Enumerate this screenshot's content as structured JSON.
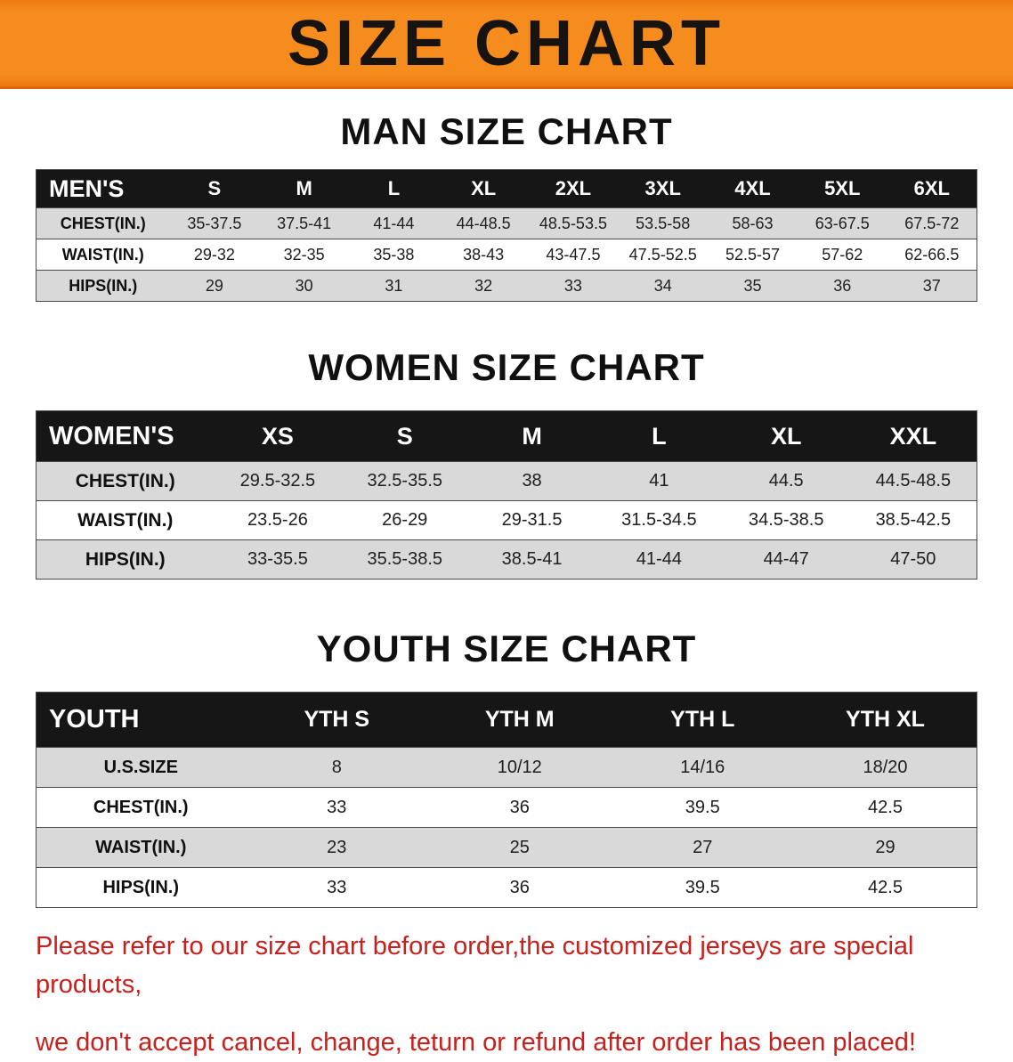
{
  "banner": {
    "title": "SIZE CHART"
  },
  "sections": {
    "men": {
      "heading": "MAN SIZE CHART",
      "table": {
        "header": [
          "MEN'S",
          "S",
          "M",
          "L",
          "XL",
          "2XL",
          "3XL",
          "4XL",
          "5XL",
          "6XL"
        ],
        "rows": [
          [
            "CHEST(IN.)",
            "35-37.5",
            "37.5-41",
            "41-44",
            "44-48.5",
            "48.5-53.5",
            "53.5-58",
            "58-63",
            "63-67.5",
            "67.5-72"
          ],
          [
            "WAIST(IN.)",
            "29-32",
            "32-35",
            "35-38",
            "38-43",
            "43-47.5",
            "47.5-52.5",
            "52.5-57",
            "57-62",
            "62-66.5"
          ],
          [
            "HIPS(IN.)",
            "29",
            "30",
            "31",
            "32",
            "33",
            "34",
            "35",
            "36",
            "37"
          ]
        ]
      }
    },
    "women": {
      "heading": "WOMEN SIZE CHART",
      "table": {
        "header": [
          "WOMEN'S",
          "XS",
          "S",
          "M",
          "L",
          "XL",
          "XXL"
        ],
        "rows": [
          [
            "CHEST(IN.)",
            "29.5-32.5",
            "32.5-35.5",
            "38",
            "41",
            "44.5",
            "44.5-48.5"
          ],
          [
            "WAIST(IN.)",
            "23.5-26",
            "26-29",
            "29-31.5",
            "31.5-34.5",
            "34.5-38.5",
            "38.5-42.5"
          ],
          [
            "HIPS(IN.)",
            "33-35.5",
            "35.5-38.5",
            "38.5-41",
            "41-44",
            "44-47",
            "47-50"
          ]
        ]
      }
    },
    "youth": {
      "heading": "YOUTH SIZE CHART",
      "table": {
        "header": [
          "YOUTH",
          "YTH S",
          "YTH M",
          "YTH L",
          "YTH XL"
        ],
        "rows": [
          [
            "U.S.SIZE",
            "8",
            "10/12",
            "14/16",
            "18/20"
          ],
          [
            "CHEST(IN.)",
            "33",
            "36",
            "39.5",
            "42.5"
          ],
          [
            "WAIST(IN.)",
            "23",
            "25",
            "27",
            "29"
          ],
          [
            "HIPS(IN.)",
            "33",
            "36",
            "39.5",
            "42.5"
          ]
        ]
      }
    }
  },
  "notice": {
    "line1": "Please refer to our size chart before order,the customized jerseys are special products,",
    "line2": "we don't accept cancel, change, teturn or refund after order has been placed!"
  },
  "colors": {
    "banner_bg": "#f78c1e",
    "table_header_bg": "#161616",
    "row_alt_bg": "#d9d9d9",
    "notice_text": "#c8201c"
  }
}
